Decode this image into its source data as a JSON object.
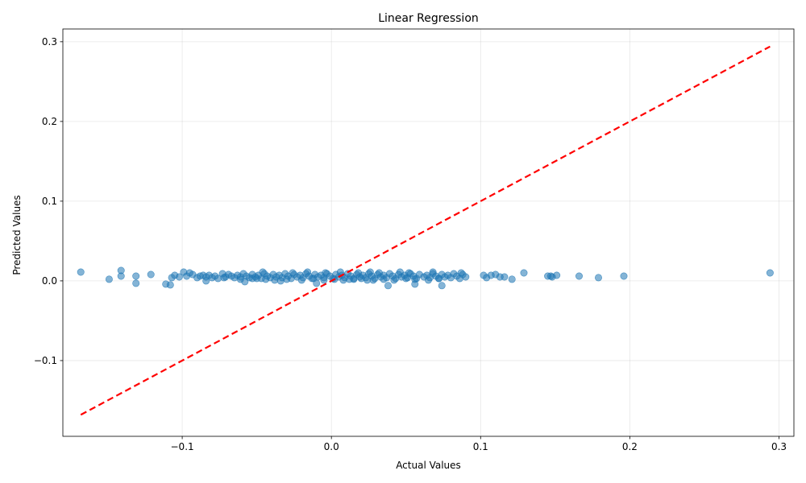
{
  "chart_data": {
    "type": "scatter",
    "title": "Linear Regression",
    "xlabel": "Actual Values",
    "ylabel": "Predicted Values",
    "xlim": [
      -0.18,
      0.31
    ],
    "ylim": [
      -0.195,
      0.316
    ],
    "x_ticks": [
      -0.1,
      0.0,
      0.1,
      0.2,
      0.3
    ],
    "x_tick_labels": [
      "−0.1",
      "0.0",
      "0.1",
      "0.2",
      "0.3"
    ],
    "y_ticks": [
      -0.1,
      0.0,
      0.1,
      0.2,
      0.3
    ],
    "y_tick_labels": [
      "−0.1",
      "0.0",
      "0.1",
      "0.2",
      "0.3"
    ],
    "grid": true,
    "point_color": "#1f77b4",
    "point_alpha": 0.55,
    "reference_line": {
      "color": "#ff0000",
      "style": "dashed",
      "x": [
        -0.168,
        0.294
      ],
      "y": [
        -0.168,
        0.294
      ]
    },
    "points": {
      "x": [
        -0.168,
        -0.149,
        -0.141,
        -0.141,
        -0.131,
        -0.131,
        -0.121,
        -0.111,
        -0.108,
        -0.107,
        -0.105,
        -0.102,
        -0.099,
        -0.097,
        -0.095,
        -0.093,
        -0.09,
        -0.088,
        -0.086,
        -0.084,
        -0.082,
        -0.08,
        -0.078,
        -0.076,
        -0.073,
        -0.071,
        -0.069,
        -0.067,
        -0.065,
        -0.063,
        -0.061,
        -0.059,
        -0.057,
        -0.055,
        -0.053,
        -0.051,
        -0.049,
        -0.047,
        -0.045,
        -0.043,
        -0.041,
        -0.039,
        -0.037,
        -0.035,
        -0.033,
        -0.031,
        -0.029,
        -0.027,
        -0.025,
        -0.023,
        -0.021,
        -0.019,
        -0.017,
        -0.015,
        -0.013,
        -0.011,
        -0.009,
        -0.007,
        -0.005,
        -0.003,
        -0.001,
        0.001,
        0.003,
        0.005,
        0.007,
        0.009,
        0.011,
        0.013,
        0.015,
        0.017,
        0.019,
        0.021,
        0.023,
        0.025,
        0.027,
        0.029,
        0.031,
        0.033,
        0.035,
        0.037,
        0.039,
        0.041,
        0.043,
        0.045,
        0.047,
        0.049,
        0.051,
        0.053,
        0.055,
        0.057,
        0.059,
        0.062,
        0.064,
        0.066,
        0.068,
        0.07,
        0.072,
        0.074,
        0.076,
        0.078,
        0.08,
        0.082,
        0.084,
        0.086,
        0.088,
        0.09,
        -0.084,
        -0.072,
        -0.061,
        -0.05,
        -0.044,
        -0.038,
        -0.03,
        -0.02,
        -0.012,
        -0.005,
        0.002,
        0.008,
        0.015,
        0.02,
        0.028,
        0.035,
        0.042,
        0.05,
        0.056,
        0.065,
        0.072,
        -0.058,
        -0.046,
        -0.026,
        -0.016,
        -0.004,
        0.006,
        0.018,
        0.026,
        0.032,
        0.046,
        0.052,
        0.068,
        0.087,
        -0.053,
        -0.034,
        -0.01,
        0.012,
        0.024,
        0.038,
        0.056,
        0.074,
        0.102,
        0.104,
        0.107,
        0.11,
        0.113,
        0.116,
        0.121,
        0.129,
        0.145,
        0.147,
        0.148,
        0.151,
        0.166,
        0.179,
        0.196,
        0.294
      ],
      "y": [
        0.011,
        0.002,
        0.006,
        0.013,
        -0.003,
        0.006,
        0.008,
        -0.004,
        -0.005,
        0.004,
        0.007,
        0.005,
        0.011,
        0.006,
        0.01,
        0.008,
        0.004,
        0.006,
        0.007,
        0.005,
        0.007,
        0.004,
        0.006,
        0.003,
        0.009,
        0.005,
        0.008,
        0.006,
        0.004,
        0.007,
        0.005,
        0.009,
        0.006,
        0.004,
        0.008,
        0.005,
        0.007,
        0.003,
        0.009,
        0.006,
        0.004,
        0.008,
        0.005,
        0.007,
        0.004,
        0.009,
        0.006,
        0.003,
        0.008,
        0.005,
        0.007,
        0.004,
        0.009,
        0.006,
        0.003,
        0.008,
        0.005,
        0.007,
        0.004,
        0.009,
        0.006,
        0.003,
        0.008,
        0.005,
        0.007,
        0.004,
        0.009,
        0.006,
        0.003,
        0.008,
        0.005,
        0.007,
        0.004,
        0.009,
        0.006,
        0.003,
        0.008,
        0.005,
        0.007,
        0.004,
        0.009,
        0.006,
        0.003,
        0.008,
        0.005,
        0.007,
        0.004,
        0.009,
        0.006,
        0.003,
        0.008,
        0.005,
        0.007,
        0.004,
        0.009,
        0.006,
        0.003,
        0.008,
        0.005,
        0.007,
        0.004,
        0.009,
        0.006,
        0.003,
        0.008,
        0.005,
        0.0,
        0.004,
        0.002,
        0.003,
        0.002,
        0.001,
        0.002,
        0.001,
        0.003,
        0.001,
        0.002,
        0.001,
        0.002,
        0.003,
        0.001,
        0.002,
        0.001,
        0.003,
        0.002,
        0.001,
        0.003,
        -0.001,
        0.011,
        0.01,
        0.011,
        0.01,
        0.011,
        0.01,
        0.011,
        0.01,
        0.011,
        0.01,
        0.011,
        0.01,
        0.003,
        0.0,
        -0.003,
        0.002,
        0.001,
        -0.006,
        -0.004,
        -0.006,
        0.007,
        0.004,
        0.007,
        0.008,
        0.005,
        0.005,
        0.002,
        0.01,
        0.006,
        0.006,
        0.005,
        0.007,
        0.006,
        0.004,
        0.006,
        0.01
      ]
    }
  }
}
